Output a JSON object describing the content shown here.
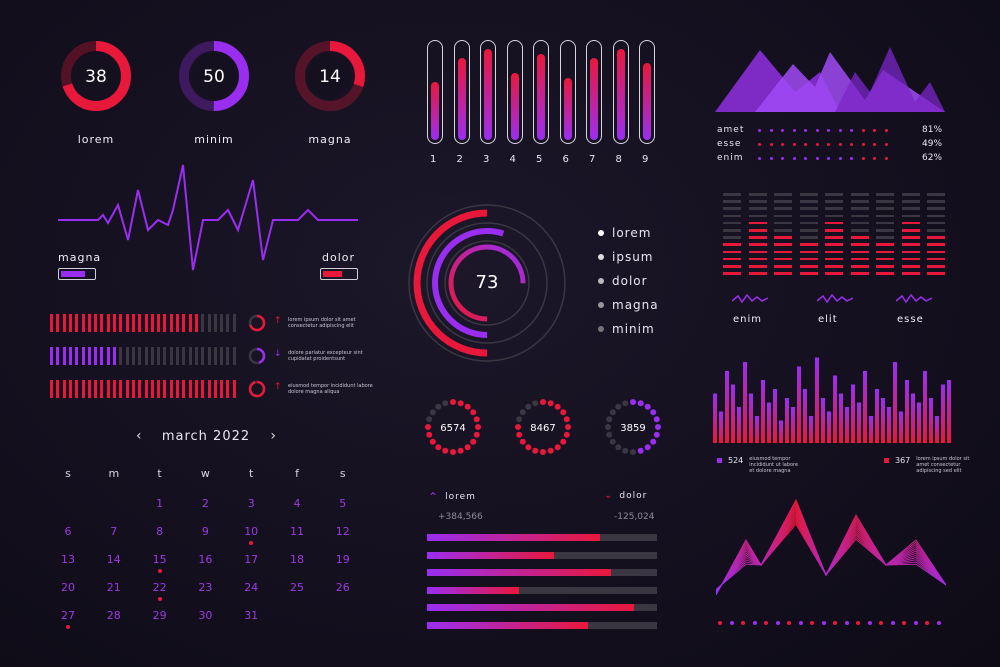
{
  "colors": {
    "bg": "#130f1e",
    "purple": "#9a2ef0",
    "red": "#e8183b",
    "grey": "#3a3642",
    "white": "#ffffff"
  },
  "gauges": [
    {
      "value": "38",
      "label": "lorem",
      "color": "#e8183b",
      "fraction": 0.7
    },
    {
      "value": "50",
      "label": "minim",
      "color": "#9a2ef0",
      "fraction": 0.5
    },
    {
      "value": "14",
      "label": "magna",
      "color": "#e8183b",
      "fraction": 0.3
    }
  ],
  "pulse": {
    "left_label": "magna",
    "right_label": "dolor",
    "left_level": 0.75,
    "right_level": 0.6
  },
  "progress_rows": [
    {
      "color": "#e8183b",
      "fraction": 0.8,
      "arrow": "↑",
      "text": "lorem ipsum dolor sit amet consectetur adipiscing elit"
    },
    {
      "color": "#9a2ef0",
      "fraction": 0.35,
      "arrow": "↓",
      "text": "dolore pariatur excepteur sint cupidatat proidentsunt"
    },
    {
      "color": "#e8183b",
      "fraction": 1.0,
      "arrow": "↑",
      "text": "eiusmod tempor incididunt labore dolore magna aliqua"
    }
  ],
  "calendar": {
    "title": "march 2022",
    "prev_icon": "chevron-left-icon",
    "next_icon": "chevron-right-icon",
    "weekdays": [
      "s",
      "m",
      "t",
      "w",
      "t",
      "f",
      "s"
    ],
    "weeks": [
      [
        "",
        "",
        "1",
        "2",
        "3",
        "4",
        "5"
      ],
      [
        "6",
        "7",
        "8",
        "9",
        "10",
        "11",
        "12"
      ],
      [
        "13",
        "14",
        "15",
        "16",
        "17",
        "18",
        "19"
      ],
      [
        "20",
        "21",
        "22",
        "23",
        "24",
        "25",
        "26"
      ],
      [
        "27",
        "28",
        "29",
        "30",
        "31",
        "",
        ""
      ]
    ],
    "marked": [
      "10",
      "15",
      "22",
      "27"
    ]
  },
  "vertical_bars": {
    "labels": [
      "1",
      "2",
      "3",
      "4",
      "5",
      "6",
      "7",
      "8",
      "9"
    ],
    "levels": [
      0.6,
      0.85,
      0.95,
      0.7,
      0.9,
      0.65,
      0.85,
      0.95,
      0.8
    ]
  },
  "donut": {
    "value": "73",
    "legend": [
      "lorem",
      "ipsum",
      "dolor",
      "magna",
      "minim"
    ]
  },
  "dot_gauges": [
    {
      "value": "6574",
      "color": "#e8183b"
    },
    {
      "value": "8467",
      "color": "#e8183b"
    },
    {
      "value": "3859",
      "color": "#9a2ef0"
    }
  ],
  "hbars": {
    "left": {
      "label": "lorem",
      "value": "+384,566",
      "icon": "chevron-up-icon"
    },
    "right": {
      "label": "dolor",
      "value": "-125,024",
      "icon": "chevron-down-icon"
    },
    "levels": [
      0.75,
      0.55,
      0.8,
      0.4,
      0.9,
      0.7
    ]
  },
  "mountains": {
    "rows": [
      {
        "label": "amet",
        "pct": "81%"
      },
      {
        "label": "esse",
        "pct": "49%"
      },
      {
        "label": "enim",
        "pct": "62%"
      }
    ]
  },
  "equalizer": {
    "labels": [
      "enim",
      "elit",
      "esse"
    ]
  },
  "bar_chart": {
    "left": {
      "value": "524",
      "text": "eiusmod tempor incididunt ut labore et dolore magna"
    },
    "right": {
      "value": "367",
      "text": "lorem ipsum dolor sit amet consectetur adipiscing sed elit"
    },
    "values": [
      0.55,
      0.35,
      0.8,
      0.65,
      0.4,
      0.9,
      0.55,
      0.3,
      0.7,
      0.45,
      0.6,
      0.25,
      0.5,
      0.4,
      0.85,
      0.6,
      0.3,
      0.95,
      0.5,
      0.35,
      0.75,
      0.55,
      0.4,
      0.65,
      0.45,
      0.8,
      0.3,
      0.6,
      0.5,
      0.4,
      0.9,
      0.35,
      0.7,
      0.55,
      0.45,
      0.8,
      0.5,
      0.3,
      0.65,
      0.7
    ]
  }
}
